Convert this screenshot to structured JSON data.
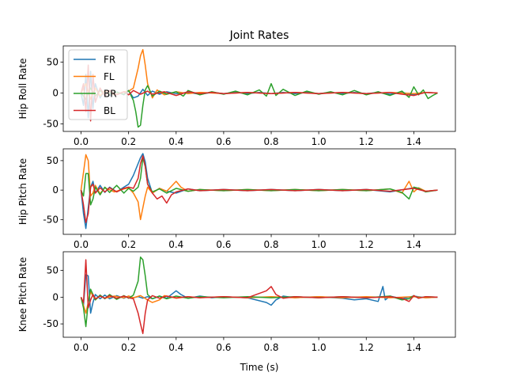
{
  "figure": {
    "title": "Joint Rates",
    "xlabel": "Time (s)"
  },
  "chart_data": [
    {
      "type": "line",
      "ylabel": "Hip Roll Rate",
      "xlim": [
        -0.075,
        1.575
      ],
      "ylim": [
        -62,
        76
      ],
      "xticks": [
        0.0,
        0.2,
        0.4,
        0.6,
        0.8,
        1.0,
        1.2,
        1.4
      ],
      "yticks": [
        -50,
        0,
        50
      ],
      "legend": "upper-left",
      "series": [
        {
          "name": "FR",
          "color": "#1f77b4",
          "x": [
            0,
            0.01,
            0.02,
            0.03,
            0.04,
            0.05,
            0.06,
            0.08,
            0.1,
            0.12,
            0.15,
            0.18,
            0.2,
            0.22,
            0.24,
            0.26,
            0.28,
            0.3,
            0.33,
            0.36,
            0.4,
            0.45,
            0.5,
            0.55,
            0.6,
            0.65,
            0.7,
            0.75,
            0.8,
            0.85,
            0.9,
            0.95,
            1.0,
            1.05,
            1.1,
            1.15,
            1.2,
            1.25,
            1.3,
            1.35,
            1.4,
            1.45,
            1.5
          ],
          "y": [
            0,
            -20,
            30,
            -40,
            35,
            -25,
            15,
            -8,
            5,
            -4,
            2,
            -3,
            4,
            -8,
            -5,
            6,
            -4,
            3,
            -2,
            2,
            -1,
            1,
            -2,
            1,
            -1,
            1,
            -1,
            1,
            -1,
            1,
            -1,
            1,
            -1,
            1,
            -1,
            1,
            -1,
            1,
            -2,
            1,
            -3,
            1,
            0
          ]
        },
        {
          "name": "FL",
          "color": "#ff7f0e",
          "x": [
            0,
            0.02,
            0.04,
            0.06,
            0.08,
            0.1,
            0.14,
            0.18,
            0.2,
            0.22,
            0.24,
            0.25,
            0.26,
            0.27,
            0.28,
            0.3,
            0.32,
            0.35,
            0.4,
            0.45,
            0.5,
            0.6,
            0.7,
            0.8,
            0.9,
            1.0,
            1.1,
            1.2,
            1.3,
            1.4,
            1.45,
            1.5
          ],
          "y": [
            0,
            15,
            -10,
            8,
            -5,
            4,
            -3,
            2,
            3,
            8,
            40,
            60,
            70,
            45,
            15,
            -8,
            5,
            -3,
            2,
            -1,
            1,
            -1,
            1,
            -1,
            1,
            -1,
            1,
            -1,
            1,
            -1,
            1,
            0
          ]
        },
        {
          "name": "BR",
          "color": "#2ca02c",
          "x": [
            0,
            0.02,
            0.04,
            0.06,
            0.08,
            0.1,
            0.14,
            0.18,
            0.2,
            0.22,
            0.23,
            0.24,
            0.25,
            0.26,
            0.27,
            0.28,
            0.3,
            0.33,
            0.36,
            0.4,
            0.43,
            0.45,
            0.5,
            0.55,
            0.6,
            0.65,
            0.7,
            0.75,
            0.78,
            0.8,
            0.82,
            0.85,
            0.9,
            0.95,
            1.0,
            1.05,
            1.1,
            1.15,
            1.2,
            1.25,
            1.3,
            1.35,
            1.38,
            1.4,
            1.42,
            1.44,
            1.46,
            1.48,
            1.5
          ],
          "y": [
            0,
            -10,
            8,
            -5,
            4,
            -3,
            2,
            -2,
            4,
            -12,
            -30,
            -55,
            -52,
            -20,
            5,
            12,
            -5,
            3,
            -2,
            2,
            -5,
            4,
            -3,
            2,
            -2,
            3,
            -3,
            5,
            -5,
            15,
            -4,
            6,
            -4,
            3,
            -2,
            2,
            -3,
            4,
            -3,
            2,
            -4,
            3,
            -7,
            10,
            -3,
            5,
            -9,
            -4,
            0
          ]
        },
        {
          "name": "BL",
          "color": "#d62728",
          "x": [
            0,
            0.01,
            0.02,
            0.03,
            0.04,
            0.05,
            0.06,
            0.08,
            0.1,
            0.12,
            0.15,
            0.18,
            0.2,
            0.22,
            0.25,
            0.28,
            0.3,
            0.35,
            0.4,
            0.45,
            0.5,
            0.55,
            0.6,
            0.7,
            0.8,
            0.9,
            1.0,
            1.1,
            1.2,
            1.3,
            1.35,
            1.4,
            1.45,
            1.5
          ],
          "y": [
            0,
            15,
            -30,
            45,
            -45,
            30,
            -15,
            8,
            -5,
            4,
            -3,
            2,
            -3,
            4,
            -2,
            3,
            -2,
            2,
            -4,
            2,
            -1,
            1,
            -1,
            1,
            -1,
            1,
            -1,
            1,
            -1,
            1,
            -2,
            -4,
            1,
            0
          ]
        }
      ]
    },
    {
      "type": "line",
      "ylabel": "Hip Pitch Rate",
      "xlim": [
        -0.075,
        1.575
      ],
      "ylim": [
        -75,
        70
      ],
      "xticks": [
        0.0,
        0.2,
        0.4,
        0.6,
        0.8,
        1.0,
        1.2,
        1.4
      ],
      "yticks": [
        -50,
        0,
        50
      ],
      "series": [
        {
          "name": "FR",
          "color": "#1f77b4",
          "x": [
            0,
            0.01,
            0.02,
            0.03,
            0.04,
            0.05,
            0.06,
            0.08,
            0.1,
            0.12,
            0.15,
            0.18,
            0.2,
            0.22,
            0.24,
            0.25,
            0.26,
            0.27,
            0.28,
            0.3,
            0.33,
            0.36,
            0.4,
            0.45,
            0.5,
            0.6,
            0.7,
            0.8,
            0.9,
            1.0,
            1.1,
            1.2,
            1.3,
            1.4,
            1.45,
            1.5
          ],
          "y": [
            0,
            -40,
            -65,
            -30,
            5,
            15,
            -5,
            8,
            -4,
            5,
            -3,
            5,
            10,
            25,
            45,
            55,
            62,
            48,
            20,
            -5,
            3,
            -2,
            -5,
            2,
            -1,
            1,
            -1,
            1,
            -1,
            1,
            -1,
            1,
            -3,
            4,
            -2,
            0
          ]
        },
        {
          "name": "FL",
          "color": "#ff7f0e",
          "x": [
            0,
            0.01,
            0.02,
            0.03,
            0.04,
            0.05,
            0.06,
            0.08,
            0.1,
            0.14,
            0.18,
            0.2,
            0.22,
            0.24,
            0.25,
            0.26,
            0.27,
            0.28,
            0.3,
            0.33,
            0.36,
            0.4,
            0.42,
            0.45,
            0.5,
            0.6,
            0.7,
            0.8,
            0.9,
            1.0,
            1.1,
            1.2,
            1.3,
            1.35,
            1.38,
            1.4,
            1.42,
            1.45,
            1.5
          ],
          "y": [
            0,
            30,
            60,
            50,
            -10,
            -5,
            8,
            -6,
            4,
            -3,
            2,
            4,
            -5,
            -20,
            -50,
            -30,
            -10,
            5,
            -5,
            3,
            -2,
            15,
            5,
            -2,
            1,
            -1,
            1,
            -1,
            1,
            -1,
            1,
            -1,
            2,
            -5,
            15,
            -3,
            4,
            -2,
            0
          ]
        },
        {
          "name": "BR",
          "color": "#2ca02c",
          "x": [
            0,
            0.01,
            0.02,
            0.03,
            0.04,
            0.05,
            0.06,
            0.08,
            0.1,
            0.12,
            0.15,
            0.18,
            0.2,
            0.22,
            0.24,
            0.25,
            0.26,
            0.27,
            0.28,
            0.3,
            0.33,
            0.36,
            0.4,
            0.45,
            0.5,
            0.6,
            0.7,
            0.8,
            0.9,
            1.0,
            1.1,
            1.2,
            1.3,
            1.35,
            1.38,
            1.4,
            1.42,
            1.45,
            1.5
          ],
          "y": [
            0,
            -10,
            28,
            28,
            -25,
            -15,
            5,
            -8,
            5,
            -4,
            8,
            -5,
            3,
            -2,
            5,
            20,
            55,
            40,
            10,
            -3,
            2,
            -5,
            3,
            -2,
            1,
            -1,
            1,
            -1,
            1,
            -1,
            1,
            -1,
            2,
            -4,
            -15,
            5,
            3,
            -3,
            0
          ]
        },
        {
          "name": "BL",
          "color": "#d62728",
          "x": [
            0,
            0.01,
            0.02,
            0.03,
            0.04,
            0.05,
            0.06,
            0.08,
            0.1,
            0.12,
            0.15,
            0.18,
            0.2,
            0.22,
            0.24,
            0.25,
            0.26,
            0.27,
            0.28,
            0.3,
            0.32,
            0.34,
            0.36,
            0.38,
            0.4,
            0.45,
            0.5,
            0.6,
            0.7,
            0.8,
            0.9,
            1.0,
            1.1,
            1.2,
            1.3,
            1.4,
            1.45,
            1.5
          ],
          "y": [
            0,
            -25,
            -55,
            -40,
            5,
            10,
            -5,
            4,
            -3,
            4,
            -3,
            3,
            5,
            3,
            20,
            45,
            58,
            40,
            10,
            -5,
            -15,
            -10,
            -22,
            -8,
            -3,
            2,
            -1,
            1,
            -1,
            1,
            -1,
            1,
            -1,
            1,
            -2,
            3,
            -2,
            0
          ]
        }
      ]
    },
    {
      "type": "line",
      "ylabel": "Knee Pitch Rate",
      "xlim": [
        -0.075,
        1.575
      ],
      "ylim": [
        -75,
        85
      ],
      "xticks": [
        0.0,
        0.2,
        0.4,
        0.6,
        0.8,
        1.0,
        1.2,
        1.4
      ],
      "yticks": [
        -50,
        0,
        50
      ],
      "series": [
        {
          "name": "FR",
          "color": "#1f77b4",
          "x": [
            0,
            0.01,
            0.02,
            0.03,
            0.04,
            0.05,
            0.06,
            0.08,
            0.1,
            0.12,
            0.15,
            0.18,
            0.2,
            0.22,
            0.24,
            0.26,
            0.28,
            0.3,
            0.33,
            0.36,
            0.4,
            0.42,
            0.45,
            0.5,
            0.55,
            0.6,
            0.7,
            0.78,
            0.8,
            0.82,
            0.85,
            0.9,
            1.0,
            1.1,
            1.15,
            1.2,
            1.25,
            1.27,
            1.28,
            1.3,
            1.35,
            1.4,
            1.45,
            1.5
          ],
          "y": [
            0,
            -15,
            42,
            40,
            -30,
            -10,
            5,
            -3,
            4,
            -3,
            3,
            -2,
            2,
            -1,
            1,
            -2,
            1,
            -3,
            2,
            -2,
            12,
            5,
            -2,
            2,
            -1,
            1,
            -1,
            -10,
            -15,
            -5,
            2,
            -1,
            1,
            -2,
            -5,
            -3,
            -8,
            20,
            -5,
            2,
            -3,
            2,
            -1,
            0
          ]
        },
        {
          "name": "FL",
          "color": "#ff7f0e",
          "x": [
            0,
            0.02,
            0.04,
            0.06,
            0.08,
            0.1,
            0.14,
            0.18,
            0.2,
            0.22,
            0.25,
            0.28,
            0.3,
            0.33,
            0.35,
            0.4,
            0.45,
            0.5,
            0.6,
            0.7,
            0.8,
            0.9,
            1.0,
            1.1,
            1.2,
            1.3,
            1.4,
            1.45,
            1.5
          ],
          "y": [
            0,
            -30,
            10,
            -5,
            3,
            -2,
            2,
            -1,
            2,
            -1,
            3,
            -5,
            -10,
            -5,
            3,
            -2,
            1,
            -1,
            1,
            -1,
            1,
            -1,
            1,
            -1,
            1,
            -1,
            1,
            -1,
            0
          ]
        },
        {
          "name": "BR",
          "color": "#2ca02c",
          "x": [
            0,
            0.01,
            0.02,
            0.03,
            0.04,
            0.05,
            0.06,
            0.08,
            0.1,
            0.12,
            0.15,
            0.18,
            0.2,
            0.22,
            0.24,
            0.25,
            0.26,
            0.27,
            0.28,
            0.3,
            0.33,
            0.36,
            0.4,
            0.45,
            0.5,
            0.6,
            0.7,
            0.8,
            0.9,
            1.0,
            1.1,
            1.2,
            1.3,
            1.35,
            1.38,
            1.4,
            1.42,
            1.45,
            1.5
          ],
          "y": [
            0,
            -20,
            -55,
            -10,
            15,
            5,
            -5,
            4,
            -3,
            5,
            -4,
            3,
            -2,
            4,
            30,
            75,
            70,
            40,
            5,
            -3,
            2,
            -3,
            2,
            -2,
            1,
            -1,
            1,
            -1,
            1,
            -1,
            1,
            -1,
            2,
            -5,
            -3,
            3,
            -2,
            1,
            0
          ]
        },
        {
          "name": "BL",
          "color": "#d62728",
          "x": [
            0,
            0.01,
            0.02,
            0.03,
            0.04,
            0.05,
            0.06,
            0.08,
            0.1,
            0.12,
            0.15,
            0.18,
            0.2,
            0.22,
            0.24,
            0.25,
            0.26,
            0.27,
            0.28,
            0.3,
            0.33,
            0.36,
            0.4,
            0.45,
            0.5,
            0.6,
            0.7,
            0.78,
            0.8,
            0.82,
            0.85,
            0.9,
            1.0,
            1.1,
            1.2,
            1.3,
            1.35,
            1.38,
            1.4,
            1.42,
            1.45,
            1.5
          ],
          "y": [
            0,
            -10,
            70,
            -20,
            -5,
            5,
            -3,
            2,
            -2,
            3,
            -2,
            2,
            -1,
            -3,
            -30,
            -50,
            -68,
            -30,
            -5,
            3,
            -2,
            2,
            -1,
            1,
            -1,
            1,
            -1,
            12,
            20,
            5,
            -2,
            1,
            -1,
            1,
            -1,
            1,
            -2,
            -8,
            3,
            -2,
            1,
            0
          ]
        }
      ]
    }
  ]
}
